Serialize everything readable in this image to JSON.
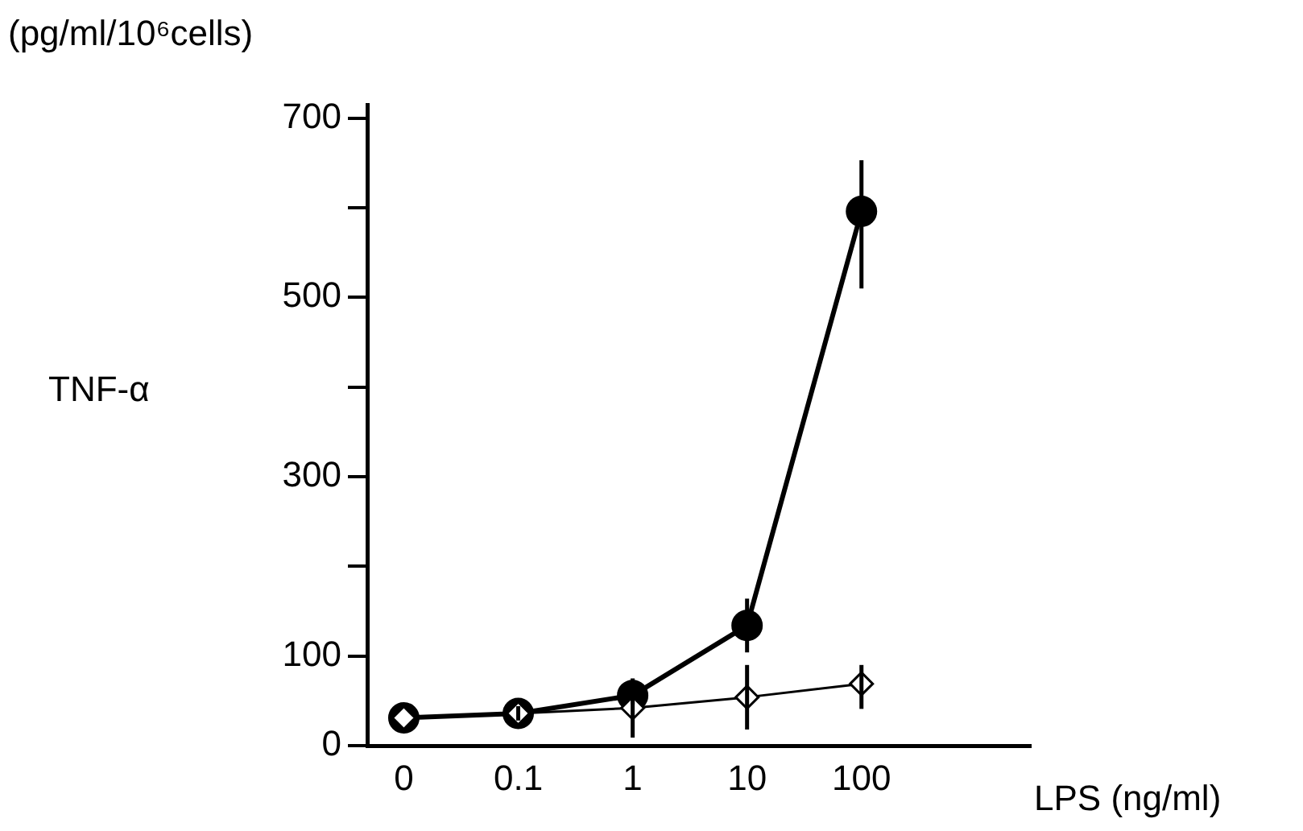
{
  "chart_data": {
    "type": "line",
    "ylabel": "TNF-α",
    "xlabel": "LPS (ng/ml)",
    "annotations": [
      "(pg/ml/10⁶cells)"
    ],
    "categories": [
      "0",
      "0.1",
      "1",
      "10",
      "100"
    ],
    "series": [
      {
        "color": "#000000",
        "marker": "circle",
        "values": [
          31,
          36,
          56,
          134,
          596
        ],
        "errors": [
          null,
          8,
          10,
          30,
          [
            510,
            653
          ]
        ]
      },
      {
        "color": "#000000",
        "marker": "diamond",
        "values": [
          31,
          36,
          42,
          54,
          69
        ],
        "errors": [
          null,
          null,
          33,
          36,
          [
            41,
            90
          ]
        ]
      }
    ],
    "ylim": [
      0,
      715
    ],
    "yticks": [
      0,
      100,
      {
        "value": 200,
        "label": null
      },
      300,
      {
        "value": 400,
        "label": null
      },
      500,
      {
        "value": 600,
        "label": null
      },
      700
    ],
    "grid": false,
    "legend": false
  }
}
